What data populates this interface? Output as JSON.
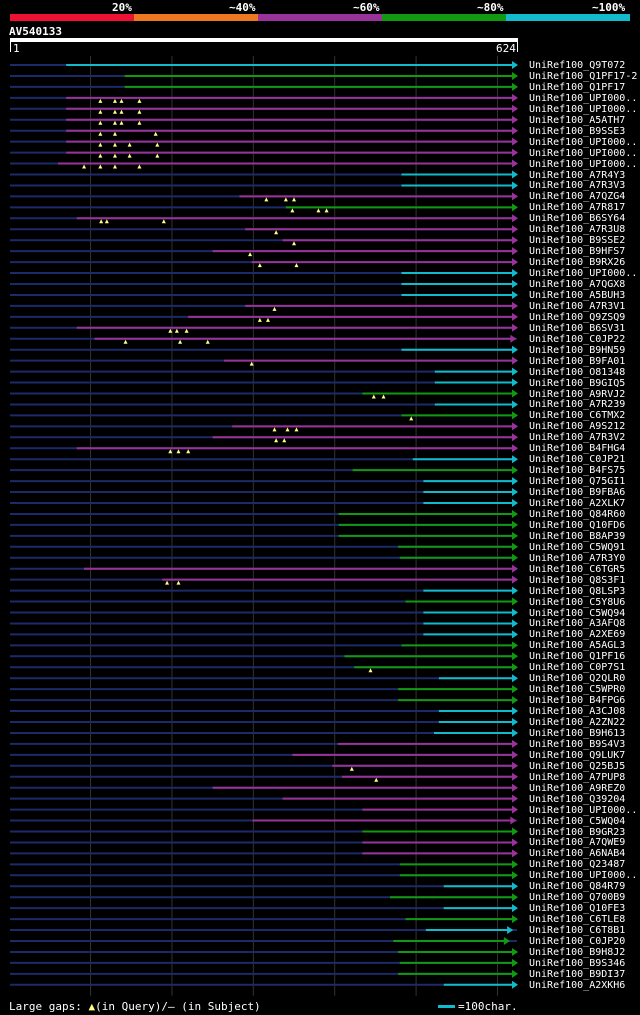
{
  "chart_data": {
    "type": "alignment-overview",
    "query": {
      "id": "AV540133",
      "start": 1,
      "end": 624
    },
    "legend": [
      {
        "label": "20%",
        "color": "#ee1133"
      },
      {
        "label": "~40%",
        "color": "#ee7722"
      },
      {
        "label": "~60%",
        "color": "#993399"
      },
      {
        "label": "~80%",
        "color": "#119911"
      },
      {
        "label": "~100%",
        "color": "#11bbcc"
      }
    ],
    "footer": {
      "gaps_text": "Large gaps: ",
      "query_gap_text": "(in Query)/",
      "subject_gap_text": "– (in Subject)",
      "scale_text": "=100char."
    },
    "hits": [
      {
        "id": "UniRef100_Q9T072",
        "start": 70,
        "end": 624,
        "identity": 100,
        "arrow": true,
        "gaps": []
      },
      {
        "id": "UniRef100_Q1PF17-2",
        "start": 142,
        "end": 624,
        "identity": 80,
        "arrow": true,
        "gaps": []
      },
      {
        "id": "UniRef100_Q1PF17",
        "start": 142,
        "end": 624,
        "identity": 80,
        "arrow": true,
        "gaps": []
      },
      {
        "id": "UniRef100_UPI000..",
        "start": 70,
        "end": 624,
        "identity": 60,
        "arrow": true,
        "gaps": [
          112,
          130,
          138,
          160
        ]
      },
      {
        "id": "UniRef100_UPI000..",
        "start": 70,
        "end": 624,
        "identity": 60,
        "arrow": true,
        "gaps": [
          112,
          130,
          138,
          160
        ]
      },
      {
        "id": "UniRef100_A5ATH7",
        "start": 70,
        "end": 624,
        "identity": 60,
        "arrow": true,
        "gaps": [
          112,
          130,
          138,
          160
        ]
      },
      {
        "id": "UniRef100_B9SSE3",
        "start": 70,
        "end": 624,
        "identity": 60,
        "arrow": true,
        "gaps": [
          112,
          130,
          180
        ]
      },
      {
        "id": "UniRef100_UPI000..",
        "start": 70,
        "end": 624,
        "identity": 60,
        "arrow": true,
        "gaps": [
          112,
          130,
          148,
          182
        ]
      },
      {
        "id": "UniRef100_UPI000..",
        "start": 70,
        "end": 624,
        "identity": 60,
        "arrow": true,
        "gaps": [
          112,
          130,
          148,
          182
        ]
      },
      {
        "id": "UniRef100_UPI000..",
        "start": 60,
        "end": 624,
        "identity": 60,
        "arrow": true,
        "gaps": [
          92,
          112,
          130,
          160
        ]
      },
      {
        "id": "UniRef100_A7R4Y3",
        "start": 482,
        "end": 624,
        "identity": 100,
        "arrow": true,
        "gaps": []
      },
      {
        "id": "UniRef100_A7R3V3",
        "start": 482,
        "end": 624,
        "identity": 100,
        "arrow": true,
        "gaps": []
      },
      {
        "id": "UniRef100_A7QZG4",
        "start": 283,
        "end": 624,
        "identity": 60,
        "arrow": true,
        "gaps": [
          316,
          340,
          350
        ]
      },
      {
        "id": "UniRef100_A7R817",
        "start": 340,
        "end": 624,
        "identity": 80,
        "arrow": true,
        "gaps": [
          348,
          380,
          390
        ]
      },
      {
        "id": "UniRef100_B6SY64",
        "start": 83,
        "end": 624,
        "identity": 60,
        "arrow": true,
        "gaps": [
          113,
          120,
          190
        ]
      },
      {
        "id": "UniRef100_A7R3U8",
        "start": 290,
        "end": 624,
        "identity": 60,
        "arrow": true,
        "gaps": [
          328
        ]
      },
      {
        "id": "UniRef100_B9SSE2",
        "start": 336,
        "end": 624,
        "identity": 60,
        "arrow": true,
        "gaps": [
          350
        ]
      },
      {
        "id": "UniRef100_B9HFS7",
        "start": 250,
        "end": 624,
        "identity": 60,
        "arrow": true,
        "gaps": [
          296
        ]
      },
      {
        "id": "UniRef100_B9RX26",
        "start": 298,
        "end": 624,
        "identity": 60,
        "arrow": true,
        "gaps": [
          308,
          353
        ]
      },
      {
        "id": "UniRef100_UPI000..",
        "start": 482,
        "end": 624,
        "identity": 100,
        "arrow": true,
        "gaps": []
      },
      {
        "id": "UniRef100_A7QGX8",
        "start": 482,
        "end": 624,
        "identity": 100,
        "arrow": true,
        "gaps": []
      },
      {
        "id": "UniRef100_A5BUH3",
        "start": 482,
        "end": 624,
        "identity": 100,
        "arrow": true,
        "gaps": []
      },
      {
        "id": "UniRef100_A7R3V1",
        "start": 290,
        "end": 624,
        "identity": 60,
        "arrow": true,
        "gaps": [
          326
        ]
      },
      {
        "id": "UniRef100_Q9ZSQ9",
        "start": 220,
        "end": 624,
        "identity": 60,
        "arrow": true,
        "gaps": [
          308,
          318
        ]
      },
      {
        "id": "UniRef100_B6SV31",
        "start": 83,
        "end": 624,
        "identity": 60,
        "arrow": true,
        "gaps": [
          198,
          206,
          218
        ]
      },
      {
        "id": "UniRef100_C0JP22",
        "start": 105,
        "end": 622,
        "identity": 60,
        "arrow": true,
        "gaps": [
          143,
          210,
          244
        ]
      },
      {
        "id": "UniRef100_B9HN59",
        "start": 482,
        "end": 624,
        "identity": 100,
        "arrow": true,
        "gaps": []
      },
      {
        "id": "UniRef100_B9FA01",
        "start": 264,
        "end": 624,
        "identity": 60,
        "arrow": true,
        "gaps": [
          298
        ]
      },
      {
        "id": "UniRef100_O81348",
        "start": 523,
        "end": 624,
        "identity": 100,
        "arrow": true,
        "gaps": []
      },
      {
        "id": "UniRef100_B9GIQ5",
        "start": 523,
        "end": 624,
        "identity": 100,
        "arrow": true,
        "gaps": []
      },
      {
        "id": "UniRef100_A9RVJ2",
        "start": 434,
        "end": 624,
        "identity": 80,
        "arrow": true,
        "gaps": [
          448,
          460
        ]
      },
      {
        "id": "UniRef100_A7R239",
        "start": 523,
        "end": 624,
        "identity": 100,
        "arrow": true,
        "gaps": []
      },
      {
        "id": "UniRef100_C6TMX2",
        "start": 482,
        "end": 624,
        "identity": 80,
        "arrow": true,
        "gaps": [
          494
        ]
      },
      {
        "id": "UniRef100_A9S212",
        "start": 274,
        "end": 624,
        "identity": 60,
        "arrow": true,
        "gaps": [
          326,
          342,
          353
        ]
      },
      {
        "id": "UniRef100_A7R3V2",
        "start": 250,
        "end": 624,
        "identity": 60,
        "arrow": true,
        "gaps": [
          328,
          338
        ]
      },
      {
        "id": "UniRef100_B4FHG4",
        "start": 83,
        "end": 624,
        "identity": 60,
        "arrow": true,
        "gaps": [
          198,
          208,
          220
        ]
      },
      {
        "id": "UniRef100_C0JP21",
        "start": 496,
        "end": 624,
        "identity": 100,
        "arrow": true,
        "gaps": []
      },
      {
        "id": "UniRef100_B4FS75",
        "start": 422,
        "end": 624,
        "identity": 80,
        "arrow": true,
        "gaps": []
      },
      {
        "id": "UniRef100_Q75GI1",
        "start": 509,
        "end": 624,
        "identity": 100,
        "arrow": true,
        "gaps": []
      },
      {
        "id": "UniRef100_B9FBA6",
        "start": 509,
        "end": 624,
        "identity": 100,
        "arrow": true,
        "gaps": []
      },
      {
        "id": "UniRef100_A2XLK7",
        "start": 509,
        "end": 624,
        "identity": 100,
        "arrow": true,
        "gaps": []
      },
      {
        "id": "UniRef100_Q84R60",
        "start": 405,
        "end": 624,
        "identity": 80,
        "arrow": true,
        "gaps": []
      },
      {
        "id": "UniRef100_Q10FD6",
        "start": 405,
        "end": 624,
        "identity": 80,
        "arrow": true,
        "gaps": []
      },
      {
        "id": "UniRef100_B8AP39",
        "start": 405,
        "end": 624,
        "identity": 80,
        "arrow": true,
        "gaps": []
      },
      {
        "id": "UniRef100_C5WQ91",
        "start": 478,
        "end": 624,
        "identity": 80,
        "arrow": true,
        "gaps": []
      },
      {
        "id": "UniRef100_A7R3Y0",
        "start": 480,
        "end": 624,
        "identity": 80,
        "arrow": true,
        "gaps": []
      },
      {
        "id": "UniRef100_C6TGR5",
        "start": 92,
        "end": 624,
        "identity": 60,
        "arrow": true,
        "gaps": []
      },
      {
        "id": "UniRef100_Q8S3F1",
        "start": 188,
        "end": 624,
        "identity": 60,
        "arrow": true,
        "gaps": [
          194,
          208
        ]
      },
      {
        "id": "UniRef100_Q8LSP3",
        "start": 509,
        "end": 624,
        "identity": 100,
        "arrow": true,
        "gaps": []
      },
      {
        "id": "UniRef100_C5Y8U6",
        "start": 487,
        "end": 624,
        "identity": 80,
        "arrow": true,
        "gaps": []
      },
      {
        "id": "UniRef100_C5WQ94",
        "start": 509,
        "end": 624,
        "identity": 100,
        "arrow": true,
        "gaps": []
      },
      {
        "id": "UniRef100_A3AFQ8",
        "start": 509,
        "end": 624,
        "identity": 100,
        "arrow": true,
        "gaps": []
      },
      {
        "id": "UniRef100_A2XE69",
        "start": 509,
        "end": 624,
        "identity": 100,
        "arrow": true,
        "gaps": []
      },
      {
        "id": "UniRef100_A5AGL3",
        "start": 482,
        "end": 624,
        "identity": 80,
        "arrow": true,
        "gaps": []
      },
      {
        "id": "UniRef100_Q1PF16",
        "start": 412,
        "end": 624,
        "identity": 80,
        "arrow": true,
        "gaps": []
      },
      {
        "id": "UniRef100_C0P7S1",
        "start": 424,
        "end": 624,
        "identity": 80,
        "arrow": true,
        "gaps": [
          444
        ]
      },
      {
        "id": "UniRef100_Q2QLR0",
        "start": 528,
        "end": 624,
        "identity": 100,
        "arrow": true,
        "gaps": []
      },
      {
        "id": "UniRef100_C5WPR0",
        "start": 478,
        "end": 624,
        "identity": 80,
        "arrow": true,
        "gaps": []
      },
      {
        "id": "UniRef100_B4FPG6",
        "start": 478,
        "end": 624,
        "identity": 80,
        "arrow": true,
        "gaps": []
      },
      {
        "id": "UniRef100_A3CJ08",
        "start": 528,
        "end": 624,
        "identity": 100,
        "arrow": true,
        "gaps": []
      },
      {
        "id": "UniRef100_A2ZN22",
        "start": 528,
        "end": 624,
        "identity": 100,
        "arrow": true,
        "gaps": []
      },
      {
        "id": "UniRef100_B9H613",
        "start": 522,
        "end": 624,
        "identity": 100,
        "arrow": true,
        "gaps": []
      },
      {
        "id": "UniRef100_B9S4V3",
        "start": 404,
        "end": 624,
        "identity": 60,
        "arrow": true,
        "gaps": []
      },
      {
        "id": "UniRef100_Q9LUK7",
        "start": 348,
        "end": 624,
        "identity": 60,
        "arrow": true,
        "gaps": []
      },
      {
        "id": "UniRef100_Q25BJ5",
        "start": 397,
        "end": 624,
        "identity": 60,
        "arrow": true,
        "gaps": [
          421
        ]
      },
      {
        "id": "UniRef100_A7PUP8",
        "start": 409,
        "end": 624,
        "identity": 60,
        "arrow": true,
        "gaps": [
          451
        ]
      },
      {
        "id": "UniRef100_A9REZ0",
        "start": 250,
        "end": 624,
        "identity": 60,
        "arrow": true,
        "gaps": []
      },
      {
        "id": "UniRef100_Q39204",
        "start": 336,
        "end": 624,
        "identity": 60,
        "arrow": true,
        "gaps": []
      },
      {
        "id": "UniRef100_UPI000..",
        "start": 434,
        "end": 624,
        "identity": 60,
        "arrow": true,
        "gaps": []
      },
      {
        "id": "UniRef100_C5WQ04",
        "start": 299,
        "end": 622,
        "identity": 60,
        "arrow": true,
        "gaps": []
      },
      {
        "id": "UniRef100_B9GR23",
        "start": 434,
        "end": 624,
        "identity": 80,
        "arrow": true,
        "gaps": []
      },
      {
        "id": "UniRef100_A7QWE9",
        "start": 434,
        "end": 624,
        "identity": 60,
        "arrow": true,
        "gaps": []
      },
      {
        "id": "UniRef100_A6NAB4",
        "start": 434,
        "end": 624,
        "identity": 60,
        "arrow": true,
        "gaps": []
      },
      {
        "id": "UniRef100_Q23487",
        "start": 480,
        "end": 624,
        "identity": 80,
        "arrow": true,
        "gaps": []
      },
      {
        "id": "UniRef100_UPI000..",
        "start": 480,
        "end": 624,
        "identity": 80,
        "arrow": true,
        "gaps": []
      },
      {
        "id": "UniRef100_Q84R79",
        "start": 534,
        "end": 624,
        "identity": 100,
        "arrow": true,
        "gaps": []
      },
      {
        "id": "UniRef100_Q700B9",
        "start": 468,
        "end": 624,
        "identity": 80,
        "arrow": true,
        "gaps": []
      },
      {
        "id": "UniRef100_Q10FE3",
        "start": 534,
        "end": 624,
        "identity": 100,
        "arrow": true,
        "gaps": []
      },
      {
        "id": "UniRef100_C6TLE8",
        "start": 487,
        "end": 624,
        "identity": 80,
        "arrow": true,
        "gaps": []
      },
      {
        "id": "UniRef100_C6T8B1",
        "start": 512,
        "end": 618,
        "identity": 100,
        "arrow": true,
        "gaps": []
      },
      {
        "id": "UniRef100_C0JP20",
        "start": 472,
        "end": 614,
        "identity": 80,
        "arrow": true,
        "gaps": []
      },
      {
        "id": "UniRef100_B9H8J2",
        "start": 478,
        "end": 624,
        "identity": 80,
        "arrow": true,
        "gaps": []
      },
      {
        "id": "UniRef100_B9S346",
        "start": 480,
        "end": 624,
        "identity": 80,
        "arrow": true,
        "gaps": []
      },
      {
        "id": "UniRef100_B9DI37",
        "start": 478,
        "end": 624,
        "identity": 80,
        "arrow": true,
        "gaps": []
      },
      {
        "id": "UniRef100_A2XKH6",
        "start": 534,
        "end": 624,
        "identity": 100,
        "arrow": true,
        "gaps": []
      }
    ]
  }
}
